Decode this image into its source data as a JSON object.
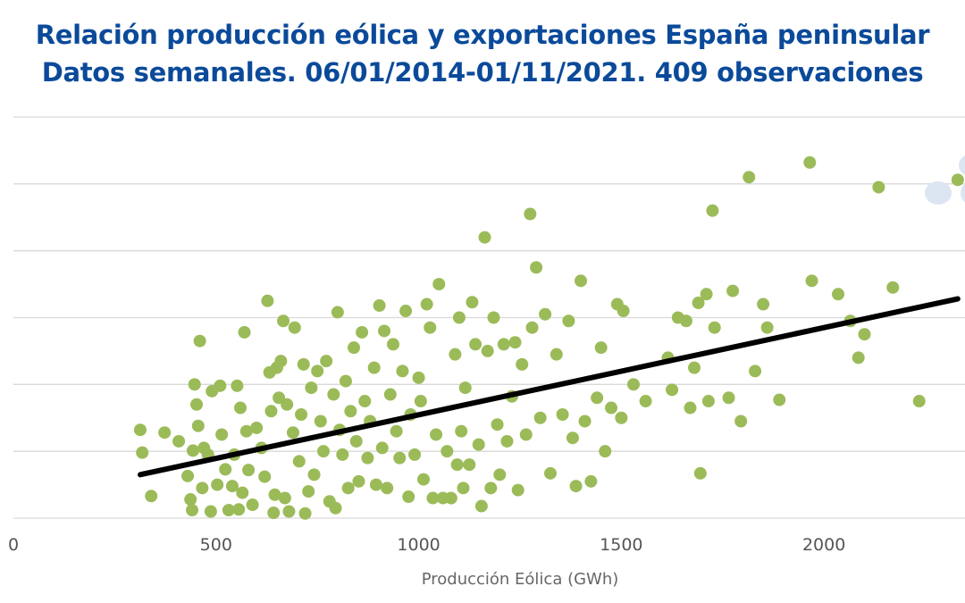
{
  "chart_data": {
    "type": "scatter",
    "title": "Relación producción eólica y exportaciones España peninsular",
    "subtitle": "Datos semanales. 06/01/2014-01/11/2021. 409 observaciones",
    "xlabel": "Producción Eólica (GWh)",
    "ylabel": "",
    "xlim": [
      0,
      2348
    ],
    "ylim": [
      0,
      6
    ],
    "xticks": [
      0,
      500,
      1000,
      1500,
      2000
    ],
    "xtick_labels": [
      "0",
      "500",
      "1000",
      "1500",
      "2000"
    ],
    "yticks": [
      0,
      1,
      2,
      3,
      4,
      5,
      6
    ],
    "grid": true,
    "colors": {
      "points": "#9bbb59",
      "trend": "#000000",
      "grid": "#d9d9d9",
      "title": "#0b4a9a",
      "faded": "#dce6f2"
    },
    "trendline": {
      "x": [
        313,
        2330
      ],
      "y": [
        0.65,
        3.28
      ]
    },
    "points": [
      [
        313,
        1.32
      ],
      [
        318,
        0.98
      ],
      [
        340,
        0.33
      ],
      [
        373,
        1.28
      ],
      [
        408,
        1.15
      ],
      [
        430,
        0.63
      ],
      [
        437,
        0.28
      ],
      [
        441,
        0.12
      ],
      [
        443,
        1.01
      ],
      [
        447,
        2.0
      ],
      [
        452,
        1.7
      ],
      [
        456,
        1.38
      ],
      [
        460,
        2.65
      ],
      [
        466,
        0.45
      ],
      [
        470,
        1.05
      ],
      [
        480,
        0.95
      ],
      [
        487,
        0.1
      ],
      [
        490,
        1.9
      ],
      [
        503,
        0.5
      ],
      [
        510,
        1.98
      ],
      [
        514,
        1.25
      ],
      [
        523,
        0.73
      ],
      [
        531,
        0.12
      ],
      [
        540,
        0.48
      ],
      [
        545,
        0.95
      ],
      [
        552,
        1.98
      ],
      [
        556,
        0.13
      ],
      [
        560,
        1.65
      ],
      [
        565,
        0.38
      ],
      [
        570,
        2.78
      ],
      [
        575,
        1.3
      ],
      [
        580,
        0.72
      ],
      [
        590,
        0.2
      ],
      [
        600,
        1.35
      ],
      [
        612,
        1.05
      ],
      [
        620,
        0.62
      ],
      [
        627,
        3.25
      ],
      [
        632,
        2.18
      ],
      [
        636,
        1.6
      ],
      [
        642,
        0.08
      ],
      [
        645,
        0.35
      ],
      [
        650,
        2.25
      ],
      [
        655,
        1.8
      ],
      [
        660,
        2.35
      ],
      [
        666,
        2.95
      ],
      [
        670,
        0.3
      ],
      [
        675,
        1.7
      ],
      [
        680,
        0.1
      ],
      [
        690,
        1.28
      ],
      [
        694,
        2.85
      ],
      [
        705,
        0.85
      ],
      [
        710,
        1.55
      ],
      [
        716,
        2.3
      ],
      [
        720,
        0.07
      ],
      [
        728,
        0.4
      ],
      [
        735,
        1.95
      ],
      [
        742,
        0.65
      ],
      [
        750,
        2.2
      ],
      [
        758,
        1.45
      ],
      [
        765,
        1.0
      ],
      [
        772,
        2.35
      ],
      [
        780,
        0.25
      ],
      [
        790,
        1.85
      ],
      [
        795,
        0.15
      ],
      [
        800,
        3.08
      ],
      [
        805,
        1.32
      ],
      [
        812,
        0.95
      ],
      [
        820,
        2.05
      ],
      [
        826,
        0.45
      ],
      [
        832,
        1.6
      ],
      [
        840,
        2.55
      ],
      [
        846,
        1.15
      ],
      [
        852,
        0.55
      ],
      [
        860,
        2.78
      ],
      [
        867,
        1.75
      ],
      [
        874,
        0.9
      ],
      [
        880,
        1.45
      ],
      [
        890,
        2.25
      ],
      [
        895,
        0.5
      ],
      [
        903,
        3.18
      ],
      [
        910,
        1.05
      ],
      [
        915,
        2.8
      ],
      [
        922,
        0.45
      ],
      [
        930,
        1.85
      ],
      [
        937,
        2.6
      ],
      [
        945,
        1.3
      ],
      [
        953,
        0.9
      ],
      [
        960,
        2.2
      ],
      [
        968,
        3.1
      ],
      [
        975,
        0.32
      ],
      [
        980,
        1.55
      ],
      [
        990,
        0.95
      ],
      [
        1000,
        2.1
      ],
      [
        1005,
        1.75
      ],
      [
        1012,
        0.58
      ],
      [
        1020,
        3.2
      ],
      [
        1028,
        2.85
      ],
      [
        1035,
        0.3
      ],
      [
        1043,
        1.25
      ],
      [
        1050,
        3.5
      ],
      [
        1060,
        0.3
      ],
      [
        1070,
        1.0
      ],
      [
        1080,
        0.3
      ],
      [
        1090,
        2.45
      ],
      [
        1095,
        0.8
      ],
      [
        1100,
        3.0
      ],
      [
        1105,
        1.3
      ],
      [
        1110,
        0.45
      ],
      [
        1115,
        1.95
      ],
      [
        1125,
        0.8
      ],
      [
        1132,
        3.23
      ],
      [
        1140,
        2.6
      ],
      [
        1148,
        1.1
      ],
      [
        1155,
        0.18
      ],
      [
        1163,
        4.2
      ],
      [
        1170,
        2.5
      ],
      [
        1178,
        0.45
      ],
      [
        1185,
        3.0
      ],
      [
        1194,
        1.4
      ],
      [
        1200,
        0.65
      ],
      [
        1210,
        2.6
      ],
      [
        1218,
        1.15
      ],
      [
        1230,
        1.82
      ],
      [
        1238,
        2.63
      ],
      [
        1245,
        0.42
      ],
      [
        1255,
        2.3
      ],
      [
        1265,
        1.25
      ],
      [
        1275,
        4.55
      ],
      [
        1280,
        2.85
      ],
      [
        1290,
        3.75
      ],
      [
        1300,
        1.5
      ],
      [
        1312,
        3.05
      ],
      [
        1325,
        0.67
      ],
      [
        1340,
        2.45
      ],
      [
        1355,
        1.55
      ],
      [
        1370,
        2.95
      ],
      [
        1380,
        1.2
      ],
      [
        1388,
        0.48
      ],
      [
        1400,
        3.55
      ],
      [
        1410,
        1.45
      ],
      [
        1425,
        0.55
      ],
      [
        1440,
        1.8
      ],
      [
        1450,
        2.55
      ],
      [
        1460,
        1.0
      ],
      [
        1475,
        1.65
      ],
      [
        1490,
        3.2
      ],
      [
        1500,
        1.5
      ],
      [
        1505,
        3.1
      ],
      [
        1530,
        2.0
      ],
      [
        1560,
        1.75
      ],
      [
        1615,
        2.4
      ],
      [
        1625,
        1.92
      ],
      [
        1640,
        3.0
      ],
      [
        1660,
        2.95
      ],
      [
        1670,
        1.65
      ],
      [
        1680,
        2.25
      ],
      [
        1690,
        3.22
      ],
      [
        1695,
        0.67
      ],
      [
        1710,
        3.35
      ],
      [
        1715,
        1.75
      ],
      [
        1725,
        4.6
      ],
      [
        1730,
        2.85
      ],
      [
        1765,
        1.8
      ],
      [
        1775,
        3.4
      ],
      [
        1795,
        1.45
      ],
      [
        1815,
        5.1
      ],
      [
        1830,
        2.2
      ],
      [
        1850,
        3.2
      ],
      [
        1860,
        2.85
      ],
      [
        1890,
        1.77
      ],
      [
        1965,
        5.32
      ],
      [
        1970,
        3.55
      ],
      [
        2035,
        3.35
      ],
      [
        2065,
        2.95
      ],
      [
        2085,
        2.4
      ],
      [
        2100,
        2.75
      ],
      [
        2135,
        4.95
      ],
      [
        2170,
        3.45
      ],
      [
        2235,
        1.75
      ],
      [
        2330,
        5.06
      ]
    ]
  }
}
